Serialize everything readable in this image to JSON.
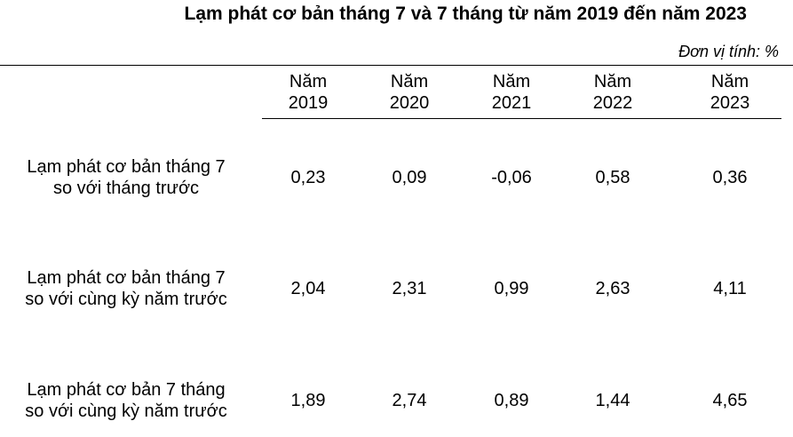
{
  "title": "Lạm phát cơ bản tháng 7 và 7 tháng từ năm 2019 đến năm 2023",
  "unit": "Đơn vị tính: %",
  "table": {
    "columns": [
      [
        "Năm",
        "2019"
      ],
      [
        "Năm",
        "2020"
      ],
      [
        "Năm",
        "2021"
      ],
      [
        "Năm",
        "2022"
      ],
      [
        "Năm",
        "2023"
      ]
    ],
    "rows": [
      {
        "label": [
          "Lạm phát cơ bản tháng 7",
          "so với tháng trước"
        ],
        "values": [
          "0,23",
          "0,09",
          "-0,06",
          "0,58",
          "0,36"
        ]
      },
      {
        "label": [
          "Lạm phát cơ bản tháng 7",
          "so với cùng kỳ năm trước"
        ],
        "values": [
          "2,04",
          "2,31",
          "0,99",
          "2,63",
          "4,11"
        ]
      },
      {
        "label": [
          "Lạm phát cơ bản 7 tháng",
          "so với cùng kỳ năm trước"
        ],
        "values": [
          "1,89",
          "2,74",
          "0,89",
          "1,44",
          "4,65"
        ]
      }
    ]
  }
}
